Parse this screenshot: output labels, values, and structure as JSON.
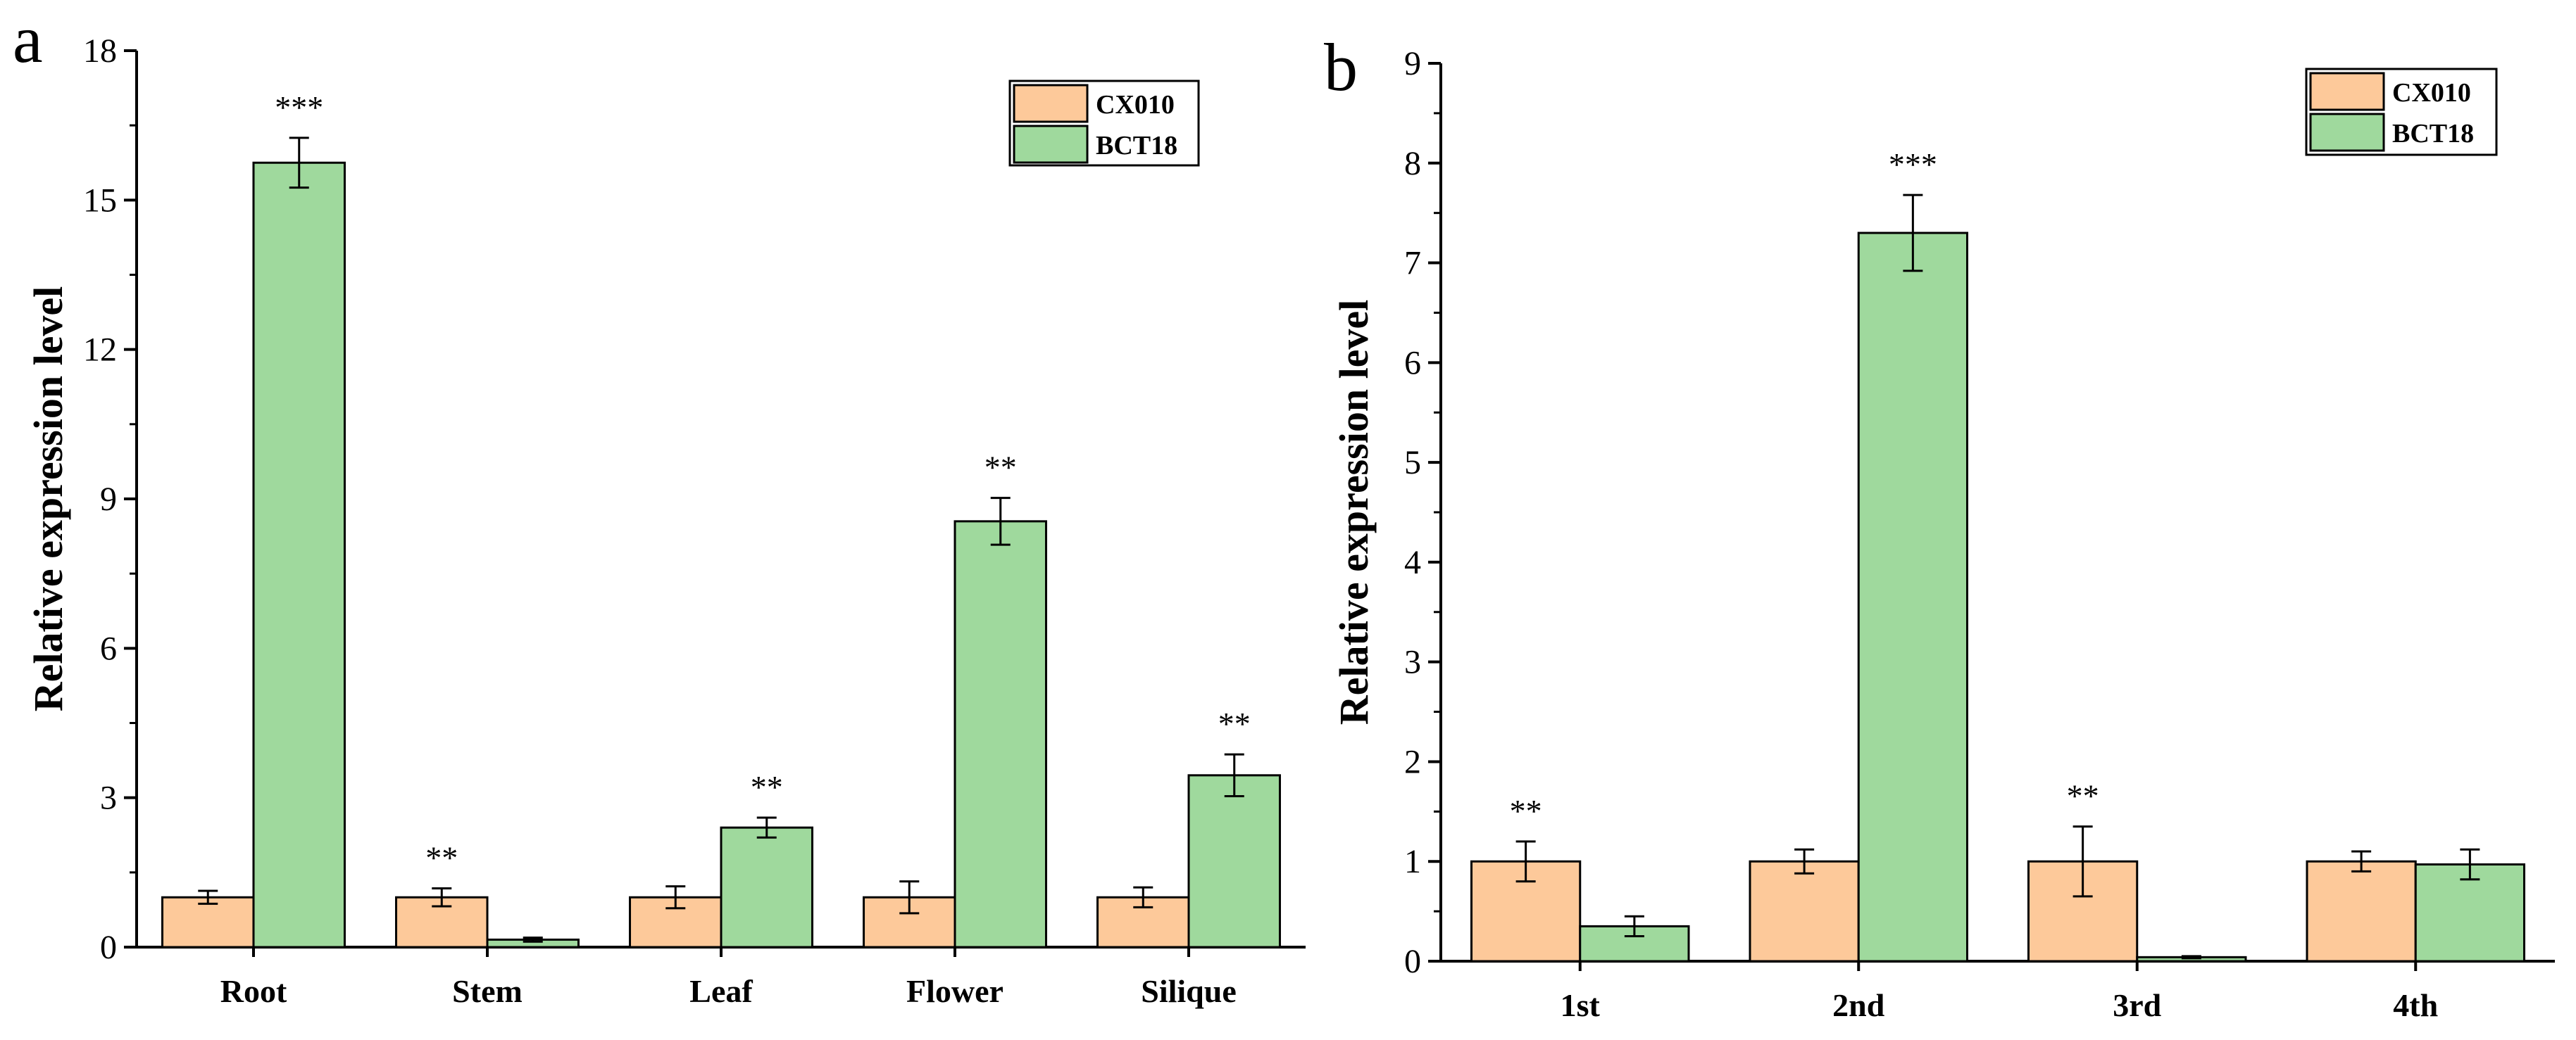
{
  "colors": {
    "cx010": "#fdc99a",
    "bct18": "#9fd99d",
    "stroke": "#000000",
    "background": "#ffffff"
  },
  "chart_data": [
    {
      "type": "bar",
      "panel": "a",
      "ylabel": "Relative expression level",
      "xlabel": "",
      "ylim": [
        0,
        18
      ],
      "yticks": [
        0,
        3,
        6,
        9,
        12,
        15,
        18
      ],
      "categories": [
        "Root",
        "Stem",
        "Leaf",
        "Flower",
        "Silique"
      ],
      "series": [
        {
          "name": "CX010",
          "color": "#fdc99a",
          "values": [
            1.0,
            1.0,
            1.0,
            1.0,
            1.0
          ],
          "errors": [
            0.13,
            0.18,
            0.22,
            0.32,
            0.2
          ]
        },
        {
          "name": "BCT18",
          "color": "#9fd99d",
          "values": [
            15.75,
            0.15,
            2.4,
            8.55,
            3.45
          ],
          "errors": [
            0.5,
            0.04,
            0.2,
            0.47,
            0.42
          ]
        }
      ],
      "significance": [
        {
          "category": "Root",
          "series": "BCT18",
          "text": "***"
        },
        {
          "category": "Stem",
          "series": "CX010",
          "text": "**"
        },
        {
          "category": "Leaf",
          "series": "BCT18",
          "text": "**"
        },
        {
          "category": "Flower",
          "series": "BCT18",
          "text": "**"
        },
        {
          "category": "Silique",
          "series": "BCT18",
          "text": "**"
        }
      ],
      "legend": {
        "position": "top-right",
        "entries": [
          "CX010",
          "BCT18"
        ]
      },
      "grid": false
    },
    {
      "type": "bar",
      "panel": "b",
      "ylabel": "Relative expression level",
      "xlabel": "",
      "ylim": [
        0,
        9
      ],
      "yticks": [
        0,
        1,
        2,
        3,
        4,
        5,
        6,
        7,
        8,
        9
      ],
      "categories": [
        "1st",
        "2nd",
        "3rd",
        "4th"
      ],
      "series": [
        {
          "name": "CX010",
          "color": "#fdc99a",
          "values": [
            1.0,
            1.0,
            1.0,
            1.0
          ],
          "errors": [
            0.2,
            0.12,
            0.35,
            0.1
          ]
        },
        {
          "name": "BCT18",
          "color": "#9fd99d",
          "values": [
            0.35,
            7.3,
            0.04,
            0.97
          ],
          "errors": [
            0.1,
            0.38,
            0.01,
            0.15
          ]
        }
      ],
      "significance": [
        {
          "category": "1st",
          "series": "CX010",
          "text": "**"
        },
        {
          "category": "2nd",
          "series": "BCT18",
          "text": "***"
        },
        {
          "category": "3rd",
          "series": "CX010",
          "text": "**"
        }
      ],
      "legend": {
        "position": "top-right",
        "entries": [
          "CX010",
          "BCT18"
        ]
      },
      "grid": false
    }
  ]
}
